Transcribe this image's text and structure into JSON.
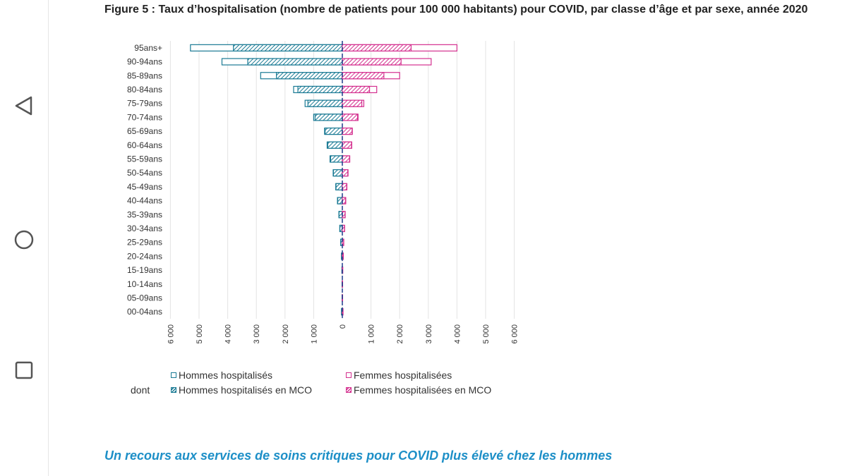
{
  "nav": {
    "back_icon": "triangle-back-icon",
    "home_icon": "circle-home-icon",
    "recent_icon": "square-recent-icon"
  },
  "figure": {
    "title": "Figure 5 : Taux d’hospitalisation (nombre de patients pour 100 000 habitants) pour COVID, par classe d’âge et par sexe, année 2020",
    "caption": "Un recours aux services de soins critiques pour COVID plus élevé chez les hommes",
    "dont_label": "dont"
  },
  "colors": {
    "hommes": "#1a7a94",
    "femmes": "#d4308f",
    "grid": "#e3e3e3",
    "axis": "#1e3c8c"
  },
  "chart_data": {
    "type": "bar",
    "orientation": "horizontal-pyramid",
    "title": "Figure 5 : Taux d’hospitalisation (nombre de patients pour 100 000 habitants) pour COVID, par classe d’âge et par sexe, année 2020",
    "categories": [
      "95ans+",
      "90-94ans",
      "85-89ans",
      "80-84ans",
      "75-79ans",
      "70-74ans",
      "65-69ans",
      "60-64ans",
      "55-59ans",
      "50-54ans",
      "45-49ans",
      "40-44ans",
      "35-39ans",
      "30-34ans",
      "25-29ans",
      "20-24ans",
      "15-19ans",
      "10-14ans",
      "05-09ans",
      "00-04ans"
    ],
    "x_ticks": [
      "6 000",
      "5 000",
      "4 000",
      "3 000",
      "2 000",
      "1 000",
      "0",
      "1 000",
      "2 000",
      "3 000",
      "4 000",
      "5 000",
      "6 000"
    ],
    "xlim": [
      -6000,
      6000
    ],
    "grid": true,
    "legend_position": "bottom",
    "series": [
      {
        "name": "Hommes hospitalisés",
        "side": "left",
        "values": [
          5300,
          4200,
          2850,
          1700,
          1300,
          1000,
          620,
          530,
          430,
          320,
          230,
          170,
          120,
          90,
          60,
          30,
          15,
          10,
          10,
          30
        ]
      },
      {
        "name": "Hommes hospitalisés en MCO",
        "side": "left",
        "values": [
          3800,
          3300,
          2300,
          1550,
          1200,
          950,
          600,
          510,
          410,
          310,
          220,
          160,
          115,
          85,
          55,
          28,
          12,
          8,
          8,
          25
        ]
      },
      {
        "name": "Femmes hospitalisées",
        "side": "right",
        "values": [
          4000,
          3100,
          2000,
          1200,
          750,
          550,
          350,
          330,
          260,
          200,
          160,
          120,
          100,
          80,
          50,
          35,
          15,
          10,
          10,
          25
        ]
      },
      {
        "name": "Femmes hospitalisées en MCO",
        "side": "right",
        "values": [
          2400,
          2050,
          1450,
          950,
          680,
          530,
          340,
          320,
          250,
          190,
          150,
          110,
          95,
          75,
          45,
          30,
          12,
          8,
          8,
          20
        ]
      }
    ]
  }
}
